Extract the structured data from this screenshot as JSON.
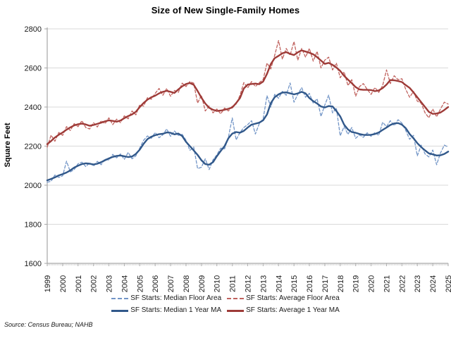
{
  "source_note": "Source: Census Bureau; NAHB",
  "chart_data": {
    "type": "line",
    "title": "Size of New Single-Family Homes",
    "xlabel": "",
    "ylabel": "Square Feet",
    "ylim": [
      1600,
      2800
    ],
    "y_ticks": [
      1600,
      1800,
      2000,
      2200,
      2400,
      2600,
      2800
    ],
    "x_tick_labels": [
      "1999",
      "2000",
      "2001",
      "2002",
      "2003",
      "2004",
      "2005",
      "2006",
      "2007",
      "2008",
      "2009",
      "2010",
      "2011",
      "2012",
      "2013",
      "2014",
      "2015",
      "2016",
      "2017",
      "2018",
      "2019",
      "2020",
      "2021",
      "2022",
      "2023",
      "2024",
      "2025"
    ],
    "x_start": 1999,
    "x_step": 0.25,
    "grid": "horizontal",
    "legend_position": "bottom",
    "axis_color": "#a6a6a6",
    "gridline_color": "#d9d9d9",
    "series": [
      {
        "name": "SF Starts: Median Floor Area",
        "color": "#7295C7",
        "style": "dashed",
        "values": [
          2015,
          2020,
          2052,
          2040,
          2048,
          2123,
          2068,
          2080,
          2110,
          2118,
          2095,
          2115,
          2098,
          2122,
          2105,
          2135,
          2128,
          2158,
          2140,
          2160,
          2132,
          2168,
          2135,
          2150,
          2190,
          2230,
          2252,
          2240,
          2270,
          2243,
          2258,
          2288,
          2250,
          2278,
          2255,
          2260,
          2230,
          2178,
          2195,
          2085,
          2092,
          2135,
          2080,
          2130,
          2155,
          2190,
          2186,
          2245,
          2344,
          2232,
          2270,
          2295,
          2310,
          2330,
          2262,
          2315,
          2340,
          2458,
          2400,
          2465,
          2445,
          2480,
          2460,
          2523,
          2425,
          2465,
          2500,
          2450,
          2470,
          2420,
          2442,
          2352,
          2410,
          2461,
          2370,
          2395,
          2253,
          2300,
          2260,
          2295,
          2240,
          2258,
          2245,
          2268,
          2250,
          2270,
          2255,
          2322,
          2300,
          2330,
          2305,
          2335,
          2318,
          2280,
          2235,
          2255,
          2150,
          2205,
          2160,
          2145,
          2180,
          2105,
          2165,
          2205,
          2195
        ]
      },
      {
        "name": "SF Starts: Average Floor Area",
        "color": "#C0625E",
        "style": "dashed",
        "values": [
          2195,
          2256,
          2225,
          2270,
          2255,
          2300,
          2280,
          2315,
          2300,
          2330,
          2295,
          2288,
          2320,
          2298,
          2330,
          2315,
          2345,
          2310,
          2338,
          2320,
          2355,
          2340,
          2380,
          2360,
          2412,
          2405,
          2448,
          2440,
          2470,
          2495,
          2460,
          2495,
          2455,
          2485,
          2475,
          2522,
          2505,
          2530,
          2522,
          2420,
          2460,
          2380,
          2405,
          2370,
          2390,
          2365,
          2395,
          2380,
          2405,
          2415,
          2460,
          2525,
          2498,
          2530,
          2505,
          2525,
          2540,
          2625,
          2595,
          2665,
          2740,
          2645,
          2700,
          2665,
          2735,
          2640,
          2700,
          2655,
          2700,
          2635,
          2685,
          2600,
          2640,
          2655,
          2590,
          2625,
          2550,
          2580,
          2510,
          2540,
          2455,
          2505,
          2520,
          2490,
          2465,
          2500,
          2475,
          2510,
          2590,
          2520,
          2560,
          2540,
          2545,
          2490,
          2450,
          2480,
          2430,
          2420,
          2370,
          2345,
          2390,
          2350,
          2390,
          2425,
          2415
        ]
      },
      {
        "name": "SF Starts: Median 1 Year MA",
        "color": "#31588A",
        "style": "solid",
        "values": [
          2025,
          2032,
          2040,
          2050,
          2057,
          2065,
          2076,
          2090,
          2100,
          2108,
          2112,
          2110,
          2106,
          2110,
          2118,
          2128,
          2137,
          2145,
          2150,
          2152,
          2148,
          2144,
          2147,
          2160,
          2182,
          2212,
          2236,
          2248,
          2256,
          2261,
          2263,
          2270,
          2268,
          2260,
          2264,
          2252,
          2222,
          2200,
          2178,
          2155,
          2128,
          2108,
          2105,
          2118,
          2148,
          2175,
          2200,
          2240,
          2264,
          2272,
          2269,
          2278,
          2295,
          2310,
          2315,
          2320,
          2332,
          2362,
          2420,
          2450,
          2465,
          2474,
          2475,
          2470,
          2465,
          2470,
          2478,
          2470,
          2446,
          2430,
          2418,
          2403,
          2398,
          2405,
          2403,
          2380,
          2352,
          2310,
          2285,
          2272,
          2268,
          2262,
          2258,
          2257,
          2258,
          2262,
          2270,
          2283,
          2295,
          2308,
          2316,
          2318,
          2310,
          2292,
          2262,
          2240,
          2215,
          2195,
          2178,
          2163,
          2158,
          2152,
          2153,
          2160,
          2172
        ]
      },
      {
        "name": "SF Starts: Average 1 Year MA",
        "color": "#9E3B38",
        "style": "solid",
        "values": [
          2210,
          2226,
          2244,
          2258,
          2270,
          2284,
          2296,
          2306,
          2312,
          2315,
          2311,
          2304,
          2308,
          2314,
          2320,
          2327,
          2332,
          2329,
          2325,
          2331,
          2343,
          2354,
          2362,
          2376,
          2400,
          2421,
          2438,
          2450,
          2458,
          2470,
          2478,
          2483,
          2478,
          2472,
          2490,
          2506,
          2518,
          2523,
          2514,
          2482,
          2448,
          2418,
          2396,
          2386,
          2380,
          2382,
          2386,
          2391,
          2398,
          2420,
          2446,
          2495,
          2515,
          2518,
          2520,
          2517,
          2530,
          2570,
          2620,
          2650,
          2662,
          2675,
          2681,
          2672,
          2666,
          2680,
          2690,
          2684,
          2678,
          2670,
          2655,
          2638,
          2621,
          2626,
          2616,
          2602,
          2585,
          2560,
          2540,
          2522,
          2502,
          2490,
          2488,
          2488,
          2487,
          2481,
          2485,
          2497,
          2515,
          2538,
          2537,
          2533,
          2528,
          2512,
          2498,
          2475,
          2450,
          2425,
          2400,
          2375,
          2365,
          2367,
          2372,
          2385,
          2400
        ]
      }
    ]
  }
}
